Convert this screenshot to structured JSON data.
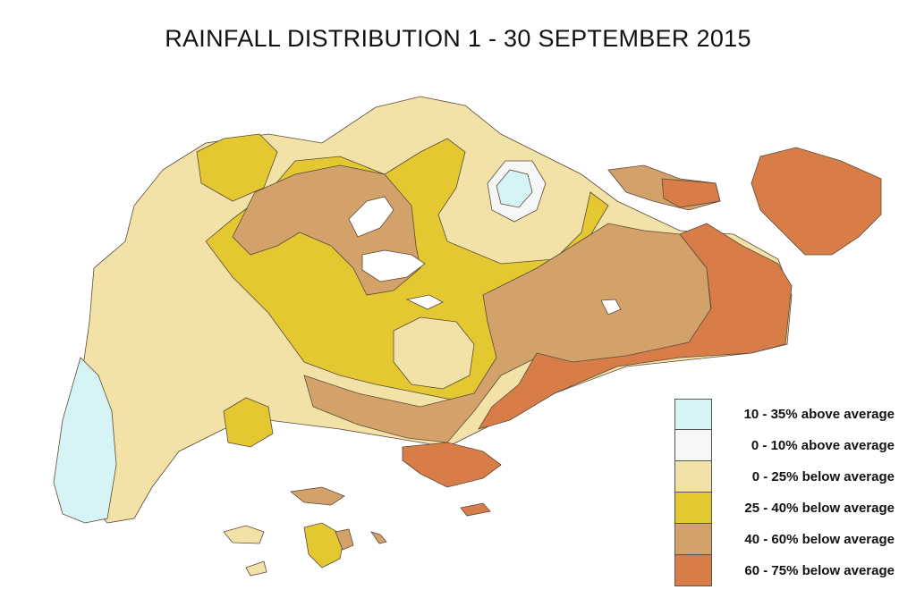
{
  "title": "RAINFALL DISTRIBUTION 1 - 30 SEPTEMBER 2015",
  "legend": [
    {
      "label": "10 - 35% above average",
      "color": "#d6f4f6"
    },
    {
      "label": "0 - 10% above average",
      "color": "#f6f8f8"
    },
    {
      "label": "0 - 25% below average",
      "color": "#f3e2a8"
    },
    {
      "label": "25 - 40% below average",
      "color": "#e3c832"
    },
    {
      "label": "40 - 60% below average",
      "color": "#d3a26a"
    },
    {
      "label": "60 - 75% below average",
      "color": "#d87d48"
    }
  ]
}
